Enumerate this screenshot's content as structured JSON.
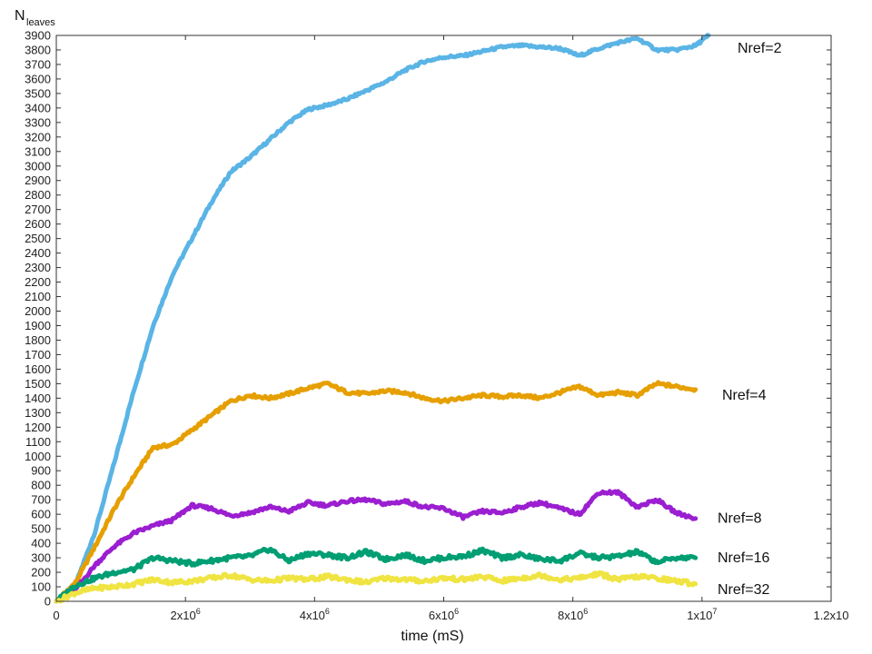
{
  "chart_data": {
    "type": "line",
    "title": "",
    "xlabel": "time (mS)",
    "ylabel_main": "N",
    "ylabel_sub": "leaves",
    "xlim": [
      0,
      12000000
    ],
    "ylim": [
      0,
      3900
    ],
    "x_ticks": [
      {
        "value": 0,
        "label": "0"
      },
      {
        "value": 2000000,
        "label": "2x10",
        "exp": "6"
      },
      {
        "value": 4000000,
        "label": "4x10",
        "exp": "6"
      },
      {
        "value": 6000000,
        "label": "6x10",
        "exp": "6"
      },
      {
        "value": 8000000,
        "label": "8x10",
        "exp": "6"
      },
      {
        "value": 10000000,
        "label": "1x10",
        "exp": "7"
      },
      {
        "value": 12000000,
        "label": "1.2x10",
        "exp": ""
      }
    ],
    "y_ticks": [
      0,
      100,
      200,
      300,
      400,
      500,
      600,
      700,
      800,
      900,
      1000,
      1100,
      1200,
      1300,
      1400,
      1500,
      1600,
      1700,
      1800,
      1900,
      2000,
      2100,
      2200,
      2300,
      2400,
      2500,
      2600,
      2700,
      2800,
      2900,
      3000,
      3100,
      3200,
      3300,
      3400,
      3500,
      3600,
      3700,
      3800,
      3900
    ],
    "grid": false,
    "series": [
      {
        "name": "Nref=2",
        "color": "#5ab4e5",
        "x": [
          0,
          300000,
          600000,
          900000,
          1200000,
          1500000,
          1800000,
          2100000,
          2400000,
          2700000,
          3000000,
          3300000,
          3600000,
          3900000,
          4200000,
          4500000,
          4800000,
          5100000,
          5400000,
          5700000,
          6000000,
          6300000,
          6600000,
          6900000,
          7200000,
          7500000,
          7800000,
          8100000,
          8400000,
          8700000,
          9000000,
          9300000,
          9600000,
          9900000,
          10100000
        ],
        "y": [
          0,
          120,
          480,
          960,
          1450,
          1900,
          2250,
          2500,
          2750,
          2960,
          3060,
          3180,
          3300,
          3390,
          3420,
          3460,
          3520,
          3580,
          3660,
          3720,
          3750,
          3760,
          3790,
          3820,
          3830,
          3820,
          3810,
          3760,
          3810,
          3850,
          3880,
          3800,
          3800,
          3830,
          3900
        ]
      },
      {
        "name": "Nref=4",
        "color": "#e69f00",
        "x": [
          0,
          300000,
          600000,
          900000,
          1200000,
          1500000,
          1800000,
          2100000,
          2400000,
          2700000,
          3000000,
          3300000,
          3600000,
          3900000,
          4200000,
          4500000,
          4800000,
          5100000,
          5400000,
          5700000,
          6000000,
          6300000,
          6600000,
          6900000,
          7200000,
          7500000,
          7800000,
          8100000,
          8400000,
          8700000,
          9000000,
          9300000,
          9600000,
          9900000
        ],
        "y": [
          0,
          130,
          380,
          640,
          860,
          1060,
          1080,
          1180,
          1280,
          1380,
          1420,
          1400,
          1430,
          1470,
          1500,
          1440,
          1430,
          1450,
          1440,
          1400,
          1380,
          1400,
          1420,
          1410,
          1420,
          1400,
          1440,
          1480,
          1420,
          1440,
          1420,
          1500,
          1480,
          1460
        ]
      },
      {
        "name": "Nref=8",
        "color": "#9b1fd0",
        "x": [
          0,
          300000,
          600000,
          900000,
          1200000,
          1500000,
          1800000,
          2100000,
          2400000,
          2700000,
          3000000,
          3300000,
          3600000,
          3900000,
          4200000,
          4500000,
          4800000,
          5100000,
          5400000,
          5700000,
          6000000,
          6300000,
          6600000,
          6900000,
          7200000,
          7500000,
          7800000,
          8100000,
          8400000,
          8700000,
          9000000,
          9300000,
          9600000,
          9900000
        ],
        "y": [
          0,
          80,
          250,
          380,
          470,
          520,
          560,
          660,
          640,
          590,
          610,
          650,
          620,
          680,
          660,
          690,
          700,
          670,
          690,
          650,
          640,
          580,
          620,
          610,
          650,
          680,
          640,
          600,
          750,
          750,
          650,
          700,
          610,
          570
        ]
      },
      {
        "name": "Nref=16",
        "color": "#009e73",
        "x": [
          0,
          300000,
          600000,
          900000,
          1200000,
          1500000,
          1800000,
          2100000,
          2400000,
          2700000,
          3000000,
          3300000,
          3600000,
          3900000,
          4200000,
          4500000,
          4800000,
          5100000,
          5400000,
          5700000,
          6000000,
          6300000,
          6600000,
          6900000,
          7200000,
          7500000,
          7800000,
          8100000,
          8400000,
          8700000,
          9000000,
          9300000,
          9600000,
          9900000
        ],
        "y": [
          0,
          110,
          160,
          200,
          220,
          300,
          280,
          260,
          280,
          300,
          310,
          360,
          280,
          330,
          320,
          300,
          340,
          290,
          320,
          280,
          300,
          310,
          350,
          300,
          320,
          290,
          280,
          330,
          300,
          310,
          340,
          270,
          300,
          300
        ]
      },
      {
        "name": "Nref=32",
        "color": "#f0e442",
        "x": [
          0,
          300000,
          600000,
          900000,
          1200000,
          1500000,
          1800000,
          2100000,
          2400000,
          2700000,
          3000000,
          3300000,
          3600000,
          3900000,
          4200000,
          4500000,
          4800000,
          5100000,
          5400000,
          5700000,
          6000000,
          6300000,
          6600000,
          6900000,
          7200000,
          7500000,
          7800000,
          8100000,
          8400000,
          8700000,
          9000000,
          9300000,
          9600000,
          9900000
        ],
        "y": [
          0,
          60,
          90,
          100,
          120,
          150,
          130,
          140,
          160,
          180,
          150,
          140,
          160,
          150,
          170,
          150,
          130,
          160,
          150,
          140,
          160,
          150,
          170,
          140,
          160,
          180,
          150,
          160,
          190,
          150,
          170,
          160,
          140,
          120
        ]
      }
    ]
  }
}
